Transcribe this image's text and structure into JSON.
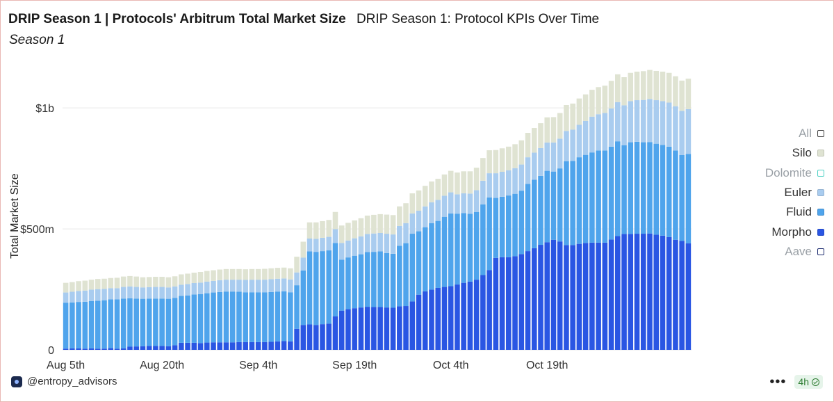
{
  "header": {
    "title": "DRIP Season 1 | Protocols' Arbitrum Total Market Size",
    "dashboard_name": "DRIP Season 1: Protocol KPIs Over Time",
    "subtitle": "Season 1"
  },
  "footer": {
    "author": "@entropy_advisors",
    "more_label": "•••",
    "refresh_badge": "4h"
  },
  "chart_data": {
    "type": "bar",
    "stacked": true,
    "ylabel": "Total Market Size",
    "ylim": [
      0,
      1150000000
    ],
    "y_ticks": [
      {
        "value": 0,
        "label": "0"
      },
      {
        "value": 500000000,
        "label": "$500m"
      },
      {
        "value": 1000000000,
        "label": "$1b"
      }
    ],
    "x_ticks": [
      {
        "index": 0,
        "label": "Aug 5th"
      },
      {
        "index": 15,
        "label": "Aug 20th"
      },
      {
        "index": 30,
        "label": "Sep 4th"
      },
      {
        "index": 45,
        "label": "Sep 19th"
      },
      {
        "index": 60,
        "label": "Oct 4th"
      },
      {
        "index": 75,
        "label": "Oct 19th"
      }
    ],
    "grid": true,
    "legend_position": "right",
    "legend": [
      {
        "name": "All",
        "color": "#444444",
        "active": false
      },
      {
        "name": "Silo",
        "color": "#dfe3d2",
        "active": true
      },
      {
        "name": "Dolomite",
        "color": "#4fd1c5",
        "active": false
      },
      {
        "name": "Euler",
        "color": "#a9ccef",
        "active": true
      },
      {
        "name": "Fluid",
        "color": "#4fa4ec",
        "active": true
      },
      {
        "name": "Morpho",
        "color": "#2a56e3",
        "active": true
      },
      {
        "name": "Aave",
        "color": "#1b2a6e",
        "active": false
      }
    ],
    "series": [
      {
        "name": "Morpho",
        "color": "#2a56e3",
        "values": [
          5,
          6,
          6,
          5,
          6,
          5,
          5,
          7,
          5,
          6,
          13,
          14,
          15,
          16,
          16,
          16,
          15,
          19,
          29,
          29,
          29,
          28,
          30,
          31,
          31,
          31,
          31,
          32,
          32,
          32,
          32,
          32,
          33,
          35,
          36,
          35,
          87,
          103,
          105,
          103,
          106,
          108,
          138,
          162,
          168,
          172,
          175,
          178,
          177,
          177,
          175,
          174,
          180,
          181,
          200,
          228,
          242,
          249,
          256,
          260,
          263,
          270,
          277,
          282,
          290,
          309,
          330,
          380,
          383,
          383,
          387,
          396,
          408,
          420,
          434,
          445,
          455,
          448,
          433,
          433,
          438,
          442,
          443,
          443,
          443,
          456,
          470,
          479,
          479,
          480,
          480,
          481,
          476,
          472,
          466,
          455,
          450,
          440
        ]
      },
      {
        "name": "Fluid",
        "color": "#4fa4ec",
        "values": [
          190,
          190,
          192,
          194,
          196,
          198,
          200,
          202,
          204,
          206,
          200,
          198,
          196,
          196,
          196,
          196,
          196,
          196,
          194,
          196,
          200,
          202,
          204,
          206,
          208,
          210,
          210,
          208,
          206,
          206,
          206,
          206,
          206,
          206,
          206,
          203,
          180,
          225,
          302,
          302,
          302,
          303,
          304,
          211,
          214,
          217,
          220,
          226,
          228,
          230,
          225,
          223,
          250,
          260,
          280,
          262,
          265,
          275,
          277,
          290,
          301,
          293,
          288,
          280,
          280,
          292,
          300,
          248,
          250,
          255,
          258,
          262,
          278,
          283,
          285,
          295,
          282,
          302,
          347,
          348,
          358,
          364,
          373,
          381,
          381,
          384,
          392,
          367,
          379,
          380,
          378,
          378,
          376,
          375,
          374,
          369,
          355,
          370
        ]
      },
      {
        "name": "Euler",
        "color": "#a9ccef",
        "values": [
          42,
          44,
          45,
          46,
          47,
          48,
          47,
          46,
          46,
          48,
          49,
          48,
          47,
          47,
          48,
          48,
          47,
          47,
          46,
          47,
          47,
          48,
          48,
          48,
          49,
          49,
          49,
          50,
          51,
          52,
          52,
          52,
          53,
          53,
          53,
          53,
          53,
          53,
          53,
          54,
          55,
          56,
          57,
          69,
          70,
          72,
          74,
          75,
          76,
          76,
          80,
          80,
          82,
          83,
          84,
          85,
          86,
          86,
          87,
          87,
          87,
          80,
          82,
          84,
          90,
          98,
          100,
          102,
          103,
          104,
          106,
          108,
          110,
          112,
          115,
          117,
          120,
          123,
          125,
          129,
          134,
          140,
          148,
          150,
          155,
          158,
          162,
          165,
          170,
          172,
          175,
          178,
          180,
          181,
          182,
          183,
          183,
          185
        ]
      },
      {
        "name": "Silo",
        "color": "#dfe3d2",
        "values": [
          40,
          40,
          41,
          41,
          41,
          42,
          42,
          42,
          43,
          43,
          43,
          43,
          42,
          42,
          42,
          42,
          42,
          42,
          43,
          43,
          43,
          44,
          44,
          44,
          44,
          44,
          44,
          44,
          44,
          44,
          44,
          45,
          45,
          45,
          45,
          46,
          65,
          66,
          67,
          68,
          69,
          70,
          71,
          72,
          73,
          74,
          75,
          76,
          77,
          78,
          79,
          80,
          81,
          82,
          83,
          84,
          85,
          86,
          87,
          88,
          89,
          90,
          91,
          92,
          93,
          94,
          95,
          96,
          97,
          98,
          99,
          100,
          101,
          102,
          103,
          104,
          105,
          106,
          107,
          108,
          109,
          110,
          111,
          112,
          113,
          114,
          115,
          116,
          117,
          118,
          119,
          120,
          121,
          122,
          123,
          124,
          125,
          126
        ]
      }
    ],
    "value_unit": "$m"
  }
}
